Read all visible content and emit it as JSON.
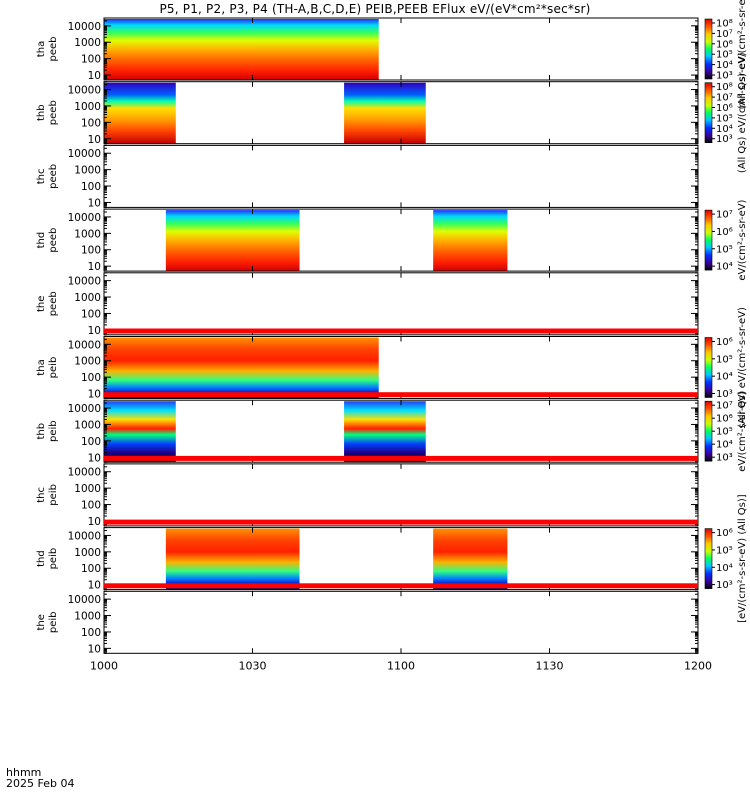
{
  "title": "P5, P1, P2, P3, P4 (TH-A,B,C,D,E) PEIB,PEEB EFlux eV/(eV*cm²*sec*sr)",
  "bottom_left": {
    "line1": "hhmm",
    "line2": "2025 Feb 04"
  },
  "colors": {
    "axis": "#000000",
    "flag_bar": "#ff0000"
  },
  "chart_data": {
    "type": "heatmap",
    "x_axis": {
      "range": [
        0,
        120
      ],
      "ticks": [
        {
          "value": 0,
          "label": "1000"
        },
        {
          "value": 30,
          "label": "1030"
        },
        {
          "value": 60,
          "label": "1100"
        },
        {
          "value": 90,
          "label": "1130"
        },
        {
          "value": 120,
          "label": "1200"
        }
      ]
    },
    "y_tick_labels": [
      "10000",
      "1000",
      "100",
      "10"
    ],
    "y_scale": "log",
    "panels": [
      {
        "probe": "tha",
        "species": "peeb",
        "ylim": [
          5,
          30000
        ],
        "data_intervals": [
          [
            0,
            55.5
          ]
        ],
        "colorbar": {
          "ticks": [
            "10⁸",
            "10⁷",
            "10⁶",
            "10⁵",
            "10⁴",
            "10³"
          ],
          "label": "(All Qs) eV/(cm²-s-sr-eV)"
        }
      },
      {
        "probe": "thb",
        "species": "peeb",
        "ylim": [
          5,
          30000
        ],
        "data_intervals": [
          [
            0,
            14.5
          ],
          [
            48.5,
            65
          ]
        ],
        "colorbar": {
          "ticks": [
            "10⁸",
            "10⁷",
            "10⁶",
            "10⁵",
            "10⁴",
            "10³"
          ],
          "label": "(All Qs) eV/(cm²-s-sr-eV)"
        }
      },
      {
        "probe": "thc",
        "species": "peeb",
        "ylim": [
          5,
          30000
        ],
        "data_intervals": [],
        "colorbar": null
      },
      {
        "probe": "thd",
        "species": "peeb",
        "ylim": [
          5,
          30000
        ],
        "data_intervals": [
          [
            12.5,
            39.5
          ],
          [
            66.5,
            81.5
          ]
        ],
        "colorbar": {
          "ticks": [
            "10⁷",
            "10⁶",
            "10⁵",
            "10⁴"
          ],
          "label": "eV/(cm²-s-sr-eV)"
        }
      },
      {
        "probe": "the",
        "species": "peeb",
        "ylim": [
          5,
          30000
        ],
        "data_intervals": [],
        "colorbar": null
      },
      {
        "probe": "tha",
        "species": "peib",
        "ylim": [
          5,
          30000
        ],
        "data_intervals": [
          [
            0,
            55.5
          ]
        ],
        "colorbar": {
          "ticks": [
            "10⁶",
            "10⁵",
            "10⁴",
            "10³"
          ],
          "label": "(All Qs) eV/(cm²-s-sr-eV)"
        }
      },
      {
        "probe": "thb",
        "species": "peib",
        "ylim": [
          5,
          30000
        ],
        "data_intervals": [
          [
            0,
            14.5
          ],
          [
            48.5,
            65
          ]
        ],
        "colorbar": {
          "ticks": [
            "10⁷",
            "10⁶",
            "10⁵",
            "10⁴",
            "10³"
          ],
          "label": "eV/(cm²-s-sr-eV)"
        }
      },
      {
        "probe": "thc",
        "species": "peib",
        "ylim": [
          5,
          30000
        ],
        "data_intervals": [],
        "colorbar": null
      },
      {
        "probe": "thd",
        "species": "peib",
        "ylim": [
          5,
          30000
        ],
        "data_intervals": [
          [
            12.5,
            39.5
          ],
          [
            66.5,
            81.5
          ]
        ],
        "colorbar": {
          "ticks": [
            "10⁶",
            "10⁵",
            "10⁴",
            "10³"
          ],
          "label": "[eV/(cm²-s-sr-eV) (All Qs)]"
        }
      },
      {
        "probe": "the",
        "species": "peib",
        "ylim": [
          5,
          30000
        ],
        "data_intervals": [],
        "colorbar": null
      }
    ]
  }
}
